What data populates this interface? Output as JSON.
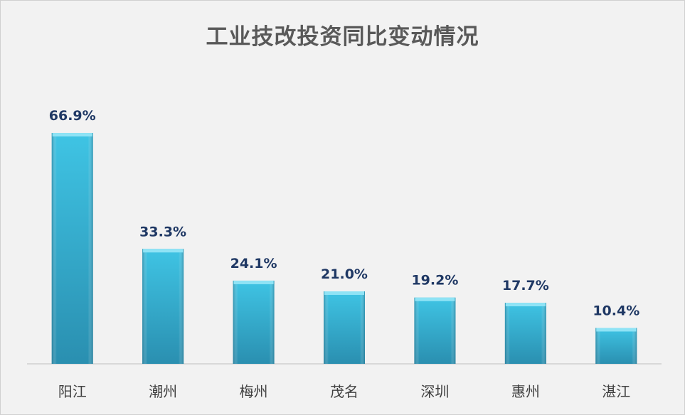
{
  "chart_data": {
    "type": "bar",
    "title": "工业技改投资同比变动情况",
    "categories": [
      "阳江",
      "潮州",
      "梅州",
      "茂名",
      "深圳",
      "惠州",
      "湛江"
    ],
    "values": [
      66.9,
      33.3,
      24.1,
      21.0,
      19.2,
      17.7,
      10.4
    ],
    "value_labels": [
      "66.9%",
      "33.3%",
      "24.1%",
      "21.0%",
      "19.2%",
      "17.7%",
      "10.4%"
    ],
    "unit": "%",
    "ylim": [
      0,
      70
    ],
    "grid": false,
    "legend": "none",
    "colors": {
      "bar_top": "#3fc4e4",
      "bar_bottom": "#2a8fb0",
      "bar_cap": "#8fe3f5",
      "data_label": "#1f3864",
      "axis": "#bfbfbf"
    }
  }
}
